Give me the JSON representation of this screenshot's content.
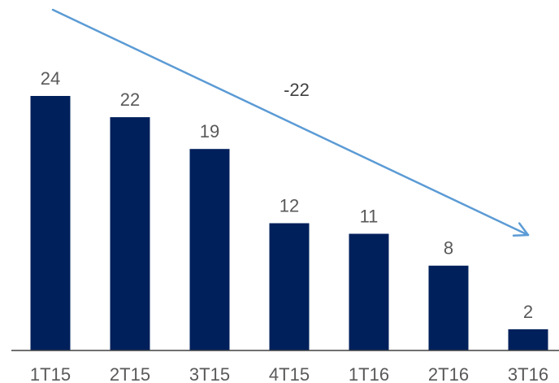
{
  "chart_data": {
    "type": "bar",
    "categories": [
      "1T15",
      "2T15",
      "3T15",
      "4T15",
      "1T16",
      "2T16",
      "3T16"
    ],
    "values": [
      24,
      22,
      19,
      12,
      11,
      8,
      2
    ],
    "data_labels": [
      "24",
      "22",
      "19",
      "12",
      "11",
      "8",
      "2"
    ],
    "title": "",
    "xlabel": "",
    "ylabel": "",
    "ylim": [
      0,
      24
    ],
    "grid": false,
    "legend": "none",
    "annotation": {
      "text": "-22",
      "type": "trend-arrow"
    },
    "colors": {
      "bar": "#00205B",
      "arrow": "#5B9BD5",
      "axis": "#404040",
      "label": "#595959"
    }
  }
}
